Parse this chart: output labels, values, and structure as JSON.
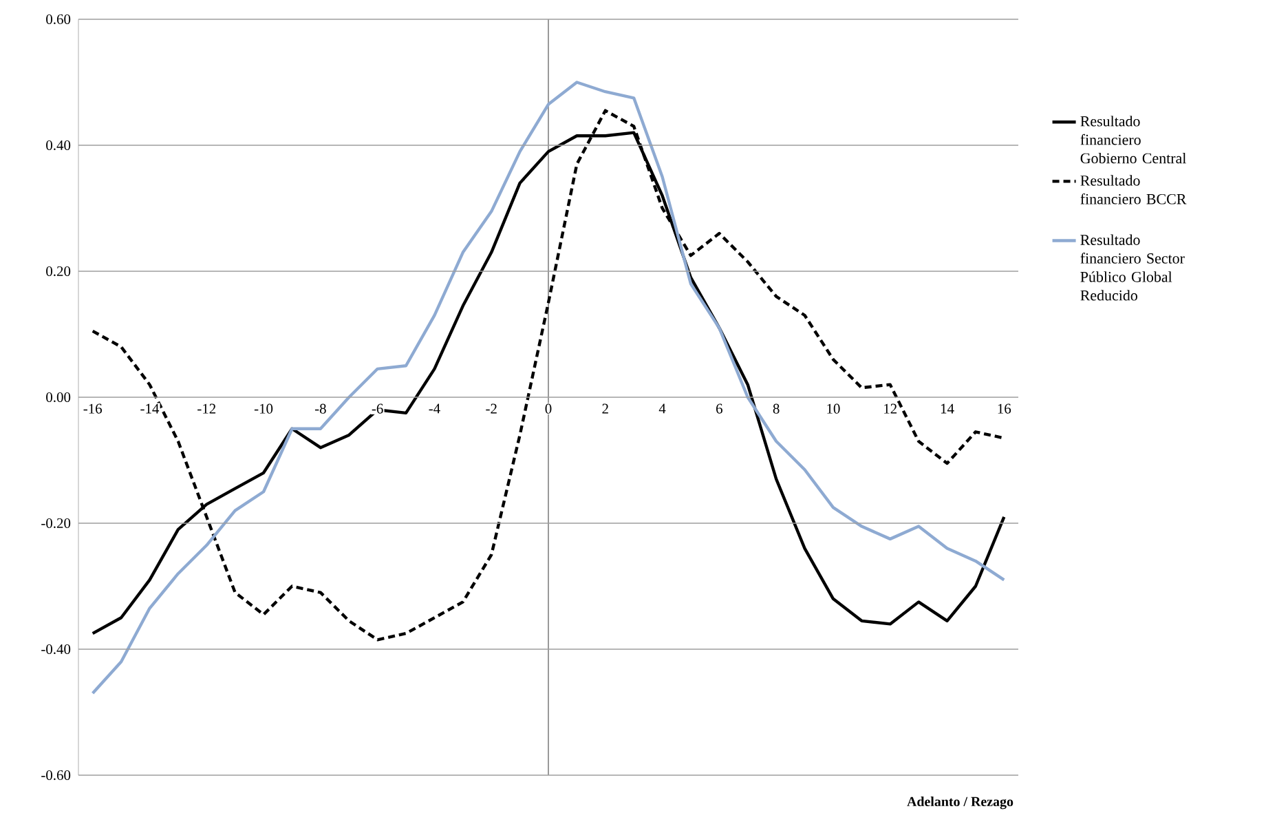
{
  "chart_data": {
    "type": "line",
    "xlabel": "Adelanto  /  Rezago",
    "x": [
      -16,
      -15,
      -14,
      -13,
      -12,
      -11,
      -10,
      -9,
      -8,
      -7,
      -6,
      -5,
      -4,
      -3,
      -2,
      -1,
      0,
      1,
      2,
      3,
      4,
      5,
      6,
      7,
      8,
      9,
      10,
      11,
      12,
      13,
      14,
      15,
      16
    ],
    "series": [
      {
        "name": "Resultado financiero Gobierno Central",
        "color": "#000000",
        "line_style": "solid",
        "values": [
          -0.375,
          -0.35,
          -0.29,
          -0.21,
          -0.17,
          -0.145,
          -0.12,
          -0.05,
          -0.08,
          -0.06,
          -0.02,
          -0.025,
          0.045,
          0.145,
          0.23,
          0.34,
          0.39,
          0.415,
          0.415,
          0.42,
          0.32,
          0.19,
          0.11,
          0.02,
          -0.13,
          -0.24,
          -0.32,
          -0.355,
          -0.36,
          -0.325,
          -0.355,
          -0.3,
          -0.19
        ]
      },
      {
        "name": "Resultado financiero BCCR",
        "color": "#000000",
        "line_style": "dashed",
        "values": [
          0.105,
          0.08,
          0.02,
          -0.07,
          -0.19,
          -0.31,
          -0.345,
          -0.3,
          -0.31,
          -0.355,
          -0.385,
          -0.375,
          -0.35,
          -0.325,
          -0.25,
          -0.06,
          0.15,
          0.37,
          0.455,
          0.43,
          0.3,
          0.225,
          0.26,
          0.215,
          0.16,
          0.13,
          0.06,
          0.015,
          0.02,
          -0.07,
          -0.105,
          -0.055,
          -0.065
        ]
      },
      {
        "name": "Resultado financiero Sector Público Global Reducido",
        "color": "#8eaad2",
        "line_style": "solid",
        "values": [
          -0.47,
          -0.42,
          -0.335,
          -0.28,
          -0.235,
          -0.18,
          -0.15,
          -0.05,
          -0.05,
          0.0,
          0.045,
          0.05,
          0.13,
          0.23,
          0.295,
          0.39,
          0.465,
          0.5,
          0.485,
          0.475,
          0.35,
          0.18,
          0.11,
          0.0,
          -0.07,
          -0.115,
          -0.175,
          -0.205,
          -0.225,
          -0.205,
          -0.24,
          -0.26,
          -0.29
        ]
      }
    ],
    "xlim": [
      -16.5,
      16.5
    ],
    "ylim": [
      -0.6,
      0.6
    ],
    "xticks": [
      -16,
      -14,
      -12,
      -10,
      -8,
      -6,
      -4,
      -2,
      0,
      2,
      4,
      6,
      8,
      10,
      12,
      14,
      16
    ],
    "yticks": [
      {
        "value": -0.6,
        "label": "-0.60"
      },
      {
        "value": -0.4,
        "label": "-0.40"
      },
      {
        "value": -0.2,
        "label": "-0.20"
      },
      {
        "value": 0,
        "label": "0.00"
      },
      {
        "value": 0.2,
        "label": "0.20"
      },
      {
        "value": 0.4,
        "label": "0.40"
      },
      {
        "value": 0.6,
        "label": "0.60"
      }
    ],
    "grid": "y",
    "legend": "right",
    "marker": "none",
    "ref_lines": [
      {
        "axis": "x",
        "value": 0,
        "color": "#808080"
      }
    ]
  }
}
